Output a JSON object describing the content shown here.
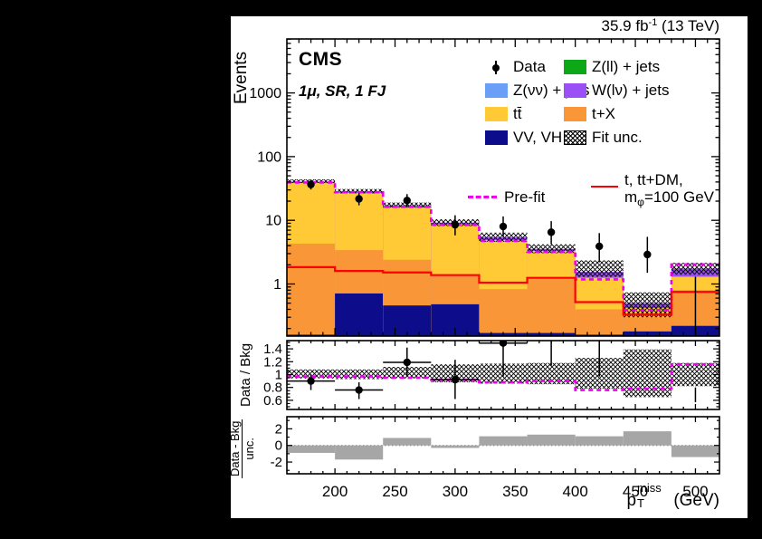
{
  "title": {
    "experiment": "CMS",
    "channel": "1μ, SR, 1 FJ"
  },
  "lumi": {
    "prefix": "35.9 fb",
    "sup": "-1",
    "suffix": " (13 TeV)"
  },
  "colors": {
    "z_ll": "#0CA818",
    "z_nunu": "#6B9EF7",
    "w_lnu": "#9B50F5",
    "ttbar": "#FFCA35",
    "t_x": "#F89638",
    "vv_vh": "#0D0D8C",
    "signal": "#FF0000",
    "prefit": "#EE00EE",
    "data": "#000000",
    "pull_bar": "#A6A6A6",
    "hatch": "#000000",
    "frame": "#000000",
    "canvas": "#FFFFFF"
  },
  "legend": {
    "entries_col1": [
      {
        "label": "Data",
        "type": "marker",
        "color_key": "data"
      },
      {
        "label": "Z(νν) + jets",
        "type": "box",
        "color_key": "z_nunu"
      },
      {
        "label": "tt̄",
        "type": "box",
        "color_key": "ttbar"
      },
      {
        "label": "VV, VH",
        "type": "box",
        "color_key": "vv_vh"
      }
    ],
    "entries_col2": [
      {
        "label": "Z(ll) + jets",
        "type": "box",
        "color_key": "z_ll"
      },
      {
        "label": "W(lν) + jets",
        "type": "box",
        "color_key": "w_lnu"
      },
      {
        "label": "t+X",
        "type": "box",
        "color_key": "t_x"
      },
      {
        "label": "Fit unc.",
        "type": "hatch",
        "color_key": "hatch"
      }
    ],
    "prefit_label": "Pre-fit",
    "signal_label_line1": "t, tt+DM,",
    "signal_line2_base": "m",
    "signal_line2_sub": "φ",
    "signal_line2_suffix": "=100 GeV"
  },
  "axes": {
    "x_title_base": "p",
    "x_title_sub": "T",
    "x_title_sup": "miss",
    "x_title_suffix": " (GeV)",
    "y_title_main": "Events",
    "y_title_ratio": "Data / Bkg",
    "y_title_pull_num": "Data - Bkg",
    "y_title_pull_den": "unc."
  },
  "chart_data": {
    "type": "stacked-histogram-with-ratio-and-pull",
    "x_bin_edges": [
      160,
      200,
      240,
      280,
      320,
      360,
      400,
      440,
      480,
      520
    ],
    "x_ticks": [
      200,
      250,
      300,
      350,
      400,
      450,
      500
    ],
    "x_minor_step": 10,
    "main": {
      "yscale": "log",
      "yrange": [
        0.152,
        7000
      ],
      "ytick_values": [
        1,
        10,
        100,
        1000
      ],
      "ytick_labels": [
        "1",
        "10",
        "100",
        "1000"
      ],
      "stack_order_bottom_to_top": [
        "vv_vh",
        "t_x",
        "ttbar",
        "w_lnu"
      ],
      "stack_cumulative": {
        "vv_vh": [
          0.16,
          0.71,
          0.46,
          0.48,
          0.17,
          0.17,
          0.16,
          0.18,
          0.22
        ],
        "t_x": [
          4.3,
          3.4,
          2.4,
          1.35,
          0.83,
          1.28,
          0.4,
          0.3,
          0.8
        ],
        "ttbar": [
          38.5,
          26.8,
          16.1,
          8.6,
          4.9,
          3.3,
          1.25,
          0.42,
          1.3
        ],
        "total": [
          40.5,
          28.5,
          17.2,
          9.2,
          5.4,
          3.55,
          1.55,
          0.5,
          1.75
        ]
      },
      "fit_unc_lo": [
        38.5,
        26.5,
        15.8,
        8.1,
        4.6,
        3.05,
        1.3,
        0.3,
        1.4
      ],
      "fit_unc_hi": [
        44,
        31,
        19,
        10.4,
        6.4,
        4.2,
        2.35,
        0.74,
        2.15
      ],
      "prefit": [
        39.3,
        27.6,
        16.3,
        8.5,
        4.75,
        3.2,
        1.18,
        0.39,
        2.03
      ],
      "signal": [
        1.84,
        1.6,
        1.52,
        1.38,
        1.05,
        1.25,
        0.52,
        0.33,
        0.75
      ],
      "data_y": [
        36.5,
        21.7,
        20.5,
        8.5,
        8.0,
        6.5,
        3.9,
        2.9,
        null
      ],
      "data_err_lo_abs": [
        30.5,
        17.2,
        16.2,
        5.8,
        5.5,
        4.2,
        2.2,
        1.5,
        null
      ],
      "data_err_hi_abs": [
        43,
        27,
        25.8,
        12,
        11.5,
        9.7,
        6.3,
        5.5,
        null
      ],
      "data_bin9_bar_range": [
        0.152,
        1.3
      ]
    },
    "ratio": {
      "ylabel": "Data / Bkg",
      "yrange": [
        0.46,
        1.53
      ],
      "yticks": [
        0.6,
        0.8,
        1,
        1.2,
        1.4
      ],
      "ytick_labels": [
        "0.6",
        "0.8",
        "1",
        "1.2",
        "1.4"
      ],
      "points": [
        {
          "y": 0.9,
          "lo": 0.76,
          "hi": 1.0
        },
        {
          "y": 0.76,
          "lo": 0.62,
          "hi": 0.88
        },
        {
          "y": 1.19,
          "lo": 0.97,
          "hi": 1.42
        },
        {
          "y": 0.92,
          "lo": 0.62,
          "hi": 1.23
        },
        {
          "y": 1.49,
          "lo": 0.97,
          "hi": 1.6
        },
        {
          "y": null,
          "lo": 1.14,
          "hi": 1.6
        },
        {
          "y": null,
          "lo": 0.97,
          "hi": 1.6
        },
        null,
        {
          "y": null,
          "lo": 0.57,
          "hi": 0.8
        }
      ],
      "prefit": [
        0.97,
        0.97,
        0.95,
        0.92,
        0.88,
        0.9,
        0.76,
        0.78,
        1.16
      ],
      "unc_lo": [
        0.94,
        0.93,
        0.94,
        0.88,
        0.86,
        0.85,
        0.78,
        0.65,
        0.82
      ],
      "unc_hi": [
        1.08,
        1.08,
        1.12,
        1.16,
        1.17,
        1.18,
        1.26,
        1.39,
        1.18
      ]
    },
    "pull": {
      "yrange": [
        -3.4,
        3.45
      ],
      "yticks": [
        -2,
        0,
        2
      ],
      "ytick_labels": [
        "-2",
        "0",
        "2"
      ],
      "values": [
        -0.9,
        -1.7,
        0.9,
        -0.3,
        1.1,
        1.3,
        1.1,
        1.7,
        -1.4
      ]
    }
  }
}
